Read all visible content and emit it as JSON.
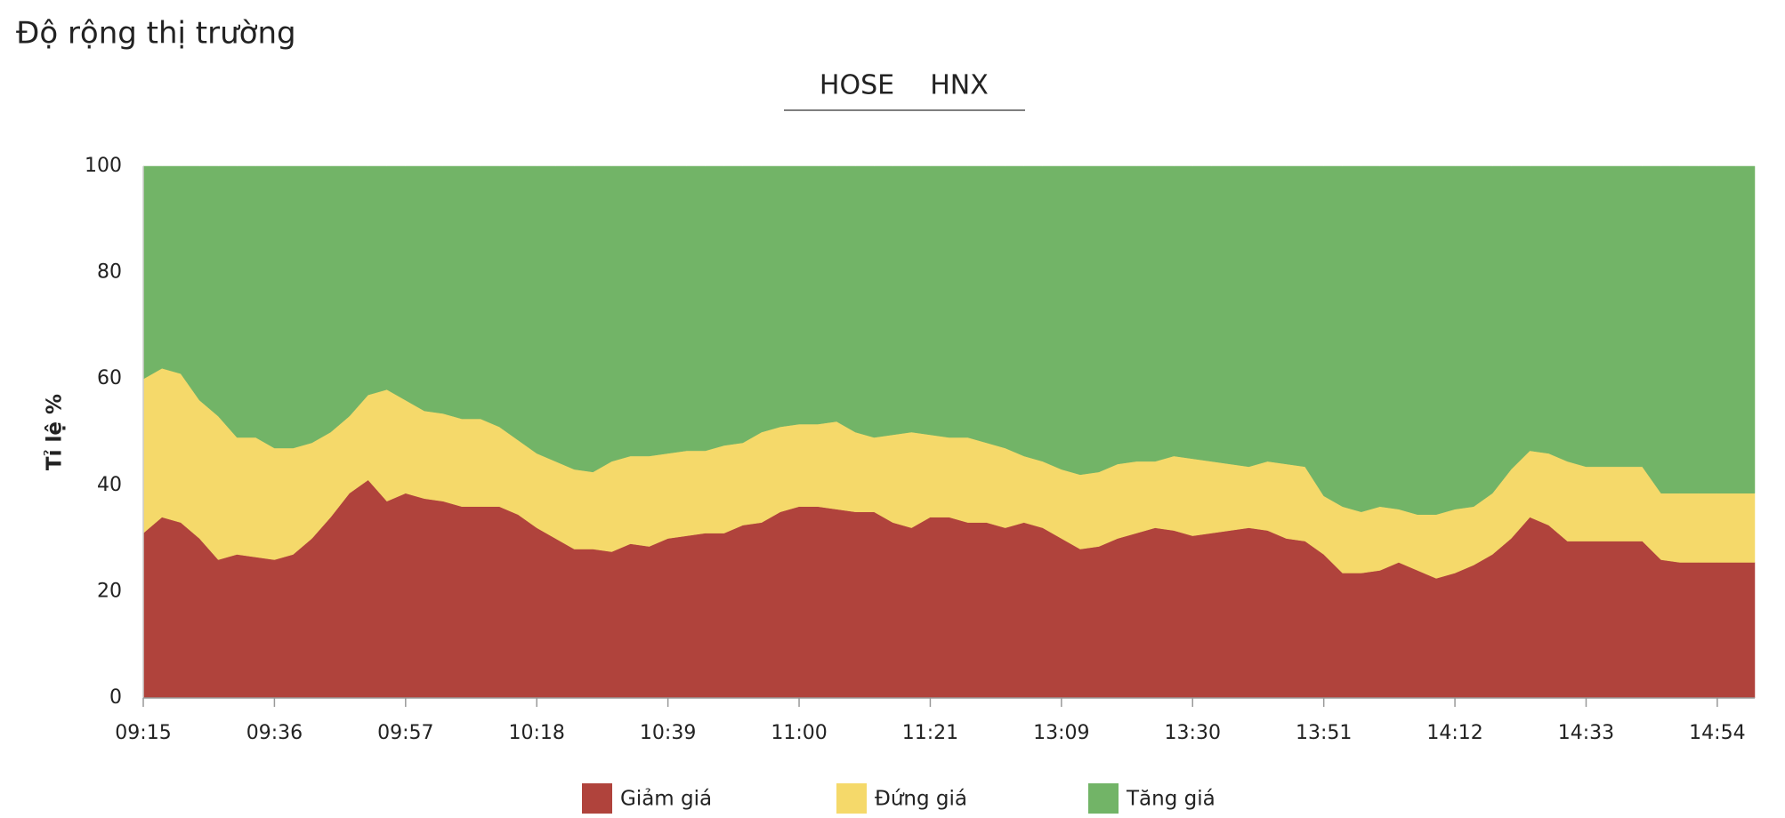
{
  "chart_data": {
    "type": "stacked_area",
    "title": "Độ rộng thị trường",
    "tabs": [
      {
        "label": "HOSE",
        "active": true
      },
      {
        "label": "HNX",
        "active": false
      }
    ],
    "ylabel": "Tỉ lệ %",
    "ylim": [
      0,
      100
    ],
    "yticks": [
      0,
      20,
      40,
      60,
      80,
      100
    ],
    "categories": [
      "09:15",
      null,
      null,
      null,
      null,
      null,
      null,
      "09:36",
      null,
      null,
      null,
      null,
      null,
      null,
      "09:57",
      null,
      null,
      null,
      null,
      null,
      null,
      "10:18",
      null,
      null,
      null,
      null,
      null,
      null,
      "10:39",
      null,
      null,
      null,
      null,
      null,
      null,
      "11:00",
      null,
      null,
      null,
      null,
      null,
      null,
      "11:21",
      null,
      null,
      null,
      null,
      null,
      null,
      "13:09",
      null,
      null,
      null,
      null,
      null,
      null,
      "13:30",
      null,
      null,
      null,
      null,
      null,
      null,
      "13:51",
      null,
      null,
      null,
      null,
      null,
      null,
      "14:12",
      null,
      null,
      null,
      null,
      null,
      null,
      "14:33",
      null,
      null,
      null,
      null,
      null,
      null,
      "14:54",
      null,
      null
    ],
    "series": [
      {
        "name": "Giảm giá",
        "color": "#b0433c",
        "values": [
          31,
          34,
          33,
          30,
          26,
          27,
          26.5,
          26,
          27,
          30,
          34,
          38.5,
          41,
          37,
          38.5,
          37.5,
          37,
          36,
          36,
          36,
          34.5,
          32,
          30,
          28,
          28,
          27.5,
          29,
          28.5,
          30,
          30.5,
          31,
          31,
          32.5,
          33,
          35,
          36,
          36,
          35.5,
          35,
          35,
          33,
          32,
          34,
          34,
          33,
          33,
          32,
          33,
          32,
          30,
          28,
          28.5,
          30,
          31,
          32,
          31.5,
          30.5,
          31,
          31.5,
          32,
          31.5,
          30,
          29.5,
          27,
          23.5,
          23.5,
          24,
          25.5,
          24,
          22.5,
          23.5,
          25,
          27,
          30,
          34,
          32.5,
          29.5,
          29.5,
          29.5,
          29.5,
          29.5,
          26,
          25.5,
          25.5,
          25.5,
          25.5,
          25.5
        ]
      },
      {
        "name": "Đứng giá",
        "color": "#f5d96a",
        "values": [
          29,
          28,
          28,
          26,
          27,
          22,
          22.5,
          21,
          20,
          18,
          16,
          14.5,
          16,
          21,
          17.5,
          16.5,
          16.5,
          16.5,
          16.5,
          15,
          14,
          14,
          14.5,
          15,
          14.5,
          17,
          16.5,
          17,
          16,
          16,
          15.5,
          16.5,
          15.5,
          17,
          16,
          15.5,
          15.5,
          16.5,
          15,
          14,
          16.5,
          18,
          15.5,
          15,
          16,
          15,
          15,
          12.5,
          12.5,
          13,
          14,
          14,
          14,
          13.5,
          12.5,
          14,
          14.5,
          13.5,
          12.5,
          11.5,
          13,
          14,
          14,
          11,
          12.5,
          11.5,
          12,
          10,
          10.5,
          12,
          12,
          11,
          11.5,
          13,
          12.5,
          13.5,
          15,
          14,
          14,
          14,
          14,
          12.5,
          13,
          13,
          13,
          13,
          13
        ]
      },
      {
        "name": "Tăng giá",
        "color": "#72b467",
        "values": [
          40,
          38,
          39,
          44,
          47,
          51,
          51,
          53,
          53,
          52,
          50,
          47,
          43,
          42,
          44,
          46,
          46.5,
          47.5,
          47.5,
          49,
          51.5,
          54,
          55.5,
          57,
          57.5,
          55.5,
          54.5,
          54.5,
          54,
          53.5,
          53.5,
          52.5,
          52,
          50,
          49,
          48.5,
          48.5,
          48,
          50,
          51,
          50.5,
          50,
          50.5,
          51,
          51,
          52,
          53,
          54.5,
          55.5,
          57,
          58,
          57.5,
          56,
          55.5,
          55.5,
          54.5,
          55,
          55.5,
          56,
          56.5,
          55.5,
          56,
          56.5,
          62,
          64,
          65,
          64,
          64.5,
          65.5,
          65.5,
          64.5,
          64,
          61.5,
          57,
          53.5,
          54,
          55.5,
          56.5,
          56.5,
          56.5,
          56.5,
          61.5,
          61.5,
          61.5,
          61.5,
          61.5,
          61.5
        ]
      }
    ]
  }
}
